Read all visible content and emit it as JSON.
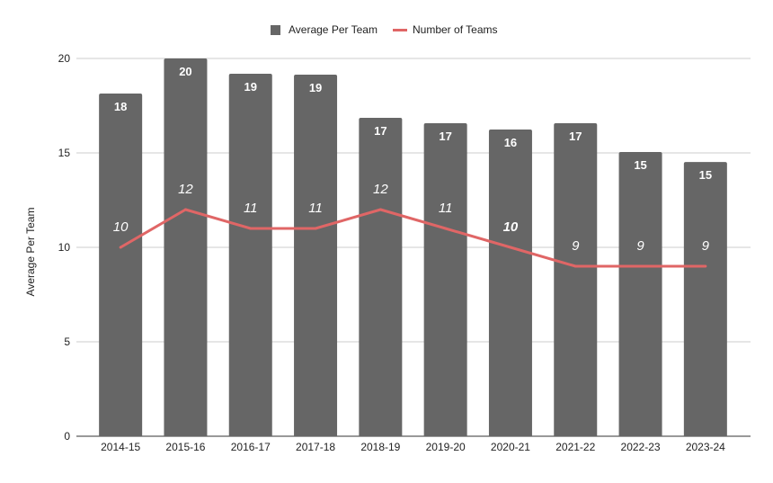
{
  "chart_data": {
    "type": "bar",
    "title": "",
    "xlabel": "",
    "ylabel": "Average Per Team",
    "ylim": [
      0,
      20
    ],
    "yticks": [
      0,
      5,
      10,
      15,
      20
    ],
    "grid": true,
    "legend_position": "top-center",
    "categories": [
      "2014-15",
      "2015-16",
      "2016-17",
      "2017-18",
      "2018-19",
      "2019-20",
      "2020-21",
      "2021-22",
      "2022-23",
      "2023-24"
    ],
    "series": [
      {
        "name": "Average Per Team",
        "type": "bar",
        "color": "#666666",
        "values": [
          18.14,
          20.0,
          19.19,
          19.14,
          16.86,
          16.57,
          16.24,
          16.57,
          15.05,
          14.52
        ],
        "labels": [
          "18",
          "20",
          "19",
          "19",
          "17",
          "17",
          "16",
          "17",
          "15",
          "15"
        ]
      },
      {
        "name": "Number of Teams",
        "type": "line",
        "color": "#e06666",
        "values": [
          10,
          12,
          11,
          11,
          12,
          11,
          10,
          9,
          9,
          9
        ],
        "labels": [
          "10",
          "12",
          "11",
          "11",
          "12",
          "11",
          "10",
          "9",
          "9",
          "9"
        ]
      }
    ]
  }
}
